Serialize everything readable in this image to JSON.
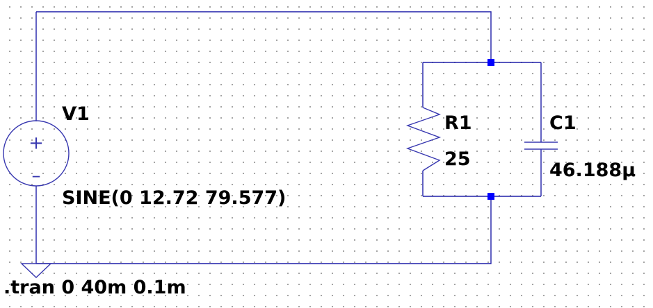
{
  "colors": {
    "background": "#ffffff",
    "wire": "#1e1ea8",
    "component": "#3838b0",
    "junction": "#0000ff",
    "text": "#000000"
  },
  "components": {
    "v1": {
      "name": "V1",
      "value": "SINE(0 12.72 79.577)",
      "plus": "+",
      "minus": "–"
    },
    "r1": {
      "name": "R1",
      "value": "25"
    },
    "c1": {
      "name": "C1",
      "value": "46.188µ"
    }
  },
  "directive": {
    "text": ".tran 0 40m 0.1m"
  }
}
